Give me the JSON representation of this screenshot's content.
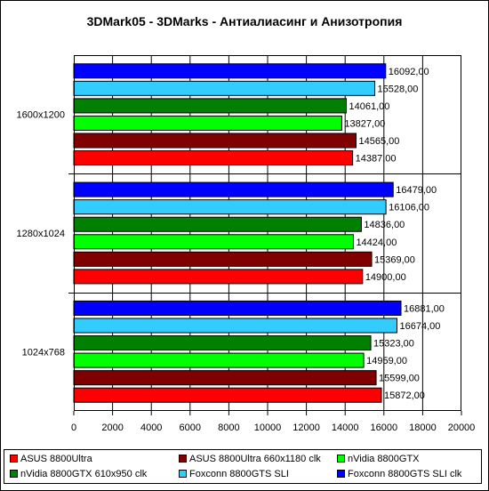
{
  "chart_data": {
    "type": "bar",
    "orientation": "horizontal",
    "title": "3DMark05 - 3DMarks - Антиалиасинг и Анизотропия",
    "categories": [
      "1600x1200",
      "1280x1024",
      "1024x768"
    ],
    "xlim": [
      0,
      20000
    ],
    "xticks": [
      "0",
      "2000",
      "4000",
      "6000",
      "8000",
      "10000",
      "12000",
      "14000",
      "16000",
      "18000",
      "20000"
    ],
    "grid": "vertical",
    "legend_position": "bottom",
    "series": [
      {
        "name": "ASUS 8800Ultra",
        "color": "#ff0000",
        "values": [
          14387,
          14900,
          15872
        ],
        "labels": [
          "14387,00",
          "14900,00",
          "15872,00"
        ]
      },
      {
        "name": "ASUS 8800Ultra 660x1180 clk",
        "color": "#800000",
        "values": [
          14565,
          15369,
          15599
        ],
        "labels": [
          "14565,00",
          "15369,00",
          "15599,00"
        ]
      },
      {
        "name": "nVidia 8800GTX",
        "color": "#00ff00",
        "values": [
          13827,
          14424,
          14959
        ],
        "labels": [
          "13827,00",
          "14424,00",
          "14959,00"
        ]
      },
      {
        "name": "nVidia 8800GTX 610x950 clk",
        "color": "#008000",
        "values": [
          14061,
          14836,
          15323
        ],
        "labels": [
          "14061,00",
          "14836,00",
          "15323,00"
        ]
      },
      {
        "name": "Foxconn 8800GTS SLI",
        "color": "#33ccff",
        "values": [
          15528,
          16106,
          16674
        ],
        "labels": [
          "15528,00",
          "16106,00",
          "16674,00"
        ]
      },
      {
        "name": "Foxconn 8800GTS SLI clk",
        "color": "#0000ff",
        "values": [
          16092,
          16479,
          16881
        ],
        "labels": [
          "16092,00",
          "16479,00",
          "16881,00"
        ]
      }
    ]
  }
}
